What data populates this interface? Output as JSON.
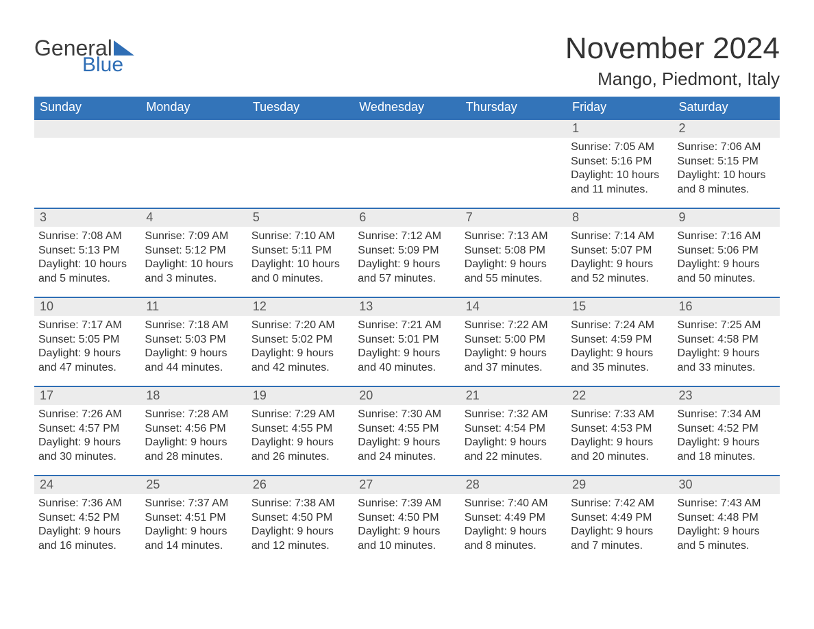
{
  "logo": {
    "word1": "General",
    "word2": "Blue",
    "triangle_color": "#2f6eb5",
    "text1_color": "#3c3c3c",
    "text2_color": "#2f6eb5"
  },
  "title": {
    "month": "November 2024",
    "location": "Mango, Piedmont, Italy"
  },
  "styling": {
    "header_bg": "#3374b9",
    "header_text_color": "#ffffff",
    "daynum_bar_bg": "#ececec",
    "daynum_bar_border_top": "#2f6eb5",
    "body_text_color": "#333333",
    "page_bg": "#ffffff",
    "header_font_size_pt": 14,
    "title_font_size_pt": 33,
    "location_font_size_pt": 20,
    "cell_font_size_pt": 12,
    "daynum_font_size_pt": 14
  },
  "day_headers": [
    "Sunday",
    "Monday",
    "Tuesday",
    "Wednesday",
    "Thursday",
    "Friday",
    "Saturday"
  ],
  "labels": {
    "sunrise": "Sunrise:",
    "sunset": "Sunset:",
    "daylight": "Daylight:"
  },
  "weeks": [
    [
      null,
      null,
      null,
      null,
      null,
      {
        "n": "1",
        "sunrise": "7:05 AM",
        "sunset": "5:16 PM",
        "dl1": "10 hours",
        "dl2": "and 11 minutes."
      },
      {
        "n": "2",
        "sunrise": "7:06 AM",
        "sunset": "5:15 PM",
        "dl1": "10 hours",
        "dl2": "and 8 minutes."
      }
    ],
    [
      {
        "n": "3",
        "sunrise": "7:08 AM",
        "sunset": "5:13 PM",
        "dl1": "10 hours",
        "dl2": "and 5 minutes."
      },
      {
        "n": "4",
        "sunrise": "7:09 AM",
        "sunset": "5:12 PM",
        "dl1": "10 hours",
        "dl2": "and 3 minutes."
      },
      {
        "n": "5",
        "sunrise": "7:10 AM",
        "sunset": "5:11 PM",
        "dl1": "10 hours",
        "dl2": "and 0 minutes."
      },
      {
        "n": "6",
        "sunrise": "7:12 AM",
        "sunset": "5:09 PM",
        "dl1": "9 hours",
        "dl2": "and 57 minutes."
      },
      {
        "n": "7",
        "sunrise": "7:13 AM",
        "sunset": "5:08 PM",
        "dl1": "9 hours",
        "dl2": "and 55 minutes."
      },
      {
        "n": "8",
        "sunrise": "7:14 AM",
        "sunset": "5:07 PM",
        "dl1": "9 hours",
        "dl2": "and 52 minutes."
      },
      {
        "n": "9",
        "sunrise": "7:16 AM",
        "sunset": "5:06 PM",
        "dl1": "9 hours",
        "dl2": "and 50 minutes."
      }
    ],
    [
      {
        "n": "10",
        "sunrise": "7:17 AM",
        "sunset": "5:05 PM",
        "dl1": "9 hours",
        "dl2": "and 47 minutes."
      },
      {
        "n": "11",
        "sunrise": "7:18 AM",
        "sunset": "5:03 PM",
        "dl1": "9 hours",
        "dl2": "and 44 minutes."
      },
      {
        "n": "12",
        "sunrise": "7:20 AM",
        "sunset": "5:02 PM",
        "dl1": "9 hours",
        "dl2": "and 42 minutes."
      },
      {
        "n": "13",
        "sunrise": "7:21 AM",
        "sunset": "5:01 PM",
        "dl1": "9 hours",
        "dl2": "and 40 minutes."
      },
      {
        "n": "14",
        "sunrise": "7:22 AM",
        "sunset": "5:00 PM",
        "dl1": "9 hours",
        "dl2": "and 37 minutes."
      },
      {
        "n": "15",
        "sunrise": "7:24 AM",
        "sunset": "4:59 PM",
        "dl1": "9 hours",
        "dl2": "and 35 minutes."
      },
      {
        "n": "16",
        "sunrise": "7:25 AM",
        "sunset": "4:58 PM",
        "dl1": "9 hours",
        "dl2": "and 33 minutes."
      }
    ],
    [
      {
        "n": "17",
        "sunrise": "7:26 AM",
        "sunset": "4:57 PM",
        "dl1": "9 hours",
        "dl2": "and 30 minutes."
      },
      {
        "n": "18",
        "sunrise": "7:28 AM",
        "sunset": "4:56 PM",
        "dl1": "9 hours",
        "dl2": "and 28 minutes."
      },
      {
        "n": "19",
        "sunrise": "7:29 AM",
        "sunset": "4:55 PM",
        "dl1": "9 hours",
        "dl2": "and 26 minutes."
      },
      {
        "n": "20",
        "sunrise": "7:30 AM",
        "sunset": "4:55 PM",
        "dl1": "9 hours",
        "dl2": "and 24 minutes."
      },
      {
        "n": "21",
        "sunrise": "7:32 AM",
        "sunset": "4:54 PM",
        "dl1": "9 hours",
        "dl2": "and 22 minutes."
      },
      {
        "n": "22",
        "sunrise": "7:33 AM",
        "sunset": "4:53 PM",
        "dl1": "9 hours",
        "dl2": "and 20 minutes."
      },
      {
        "n": "23",
        "sunrise": "7:34 AM",
        "sunset": "4:52 PM",
        "dl1": "9 hours",
        "dl2": "and 18 minutes."
      }
    ],
    [
      {
        "n": "24",
        "sunrise": "7:36 AM",
        "sunset": "4:52 PM",
        "dl1": "9 hours",
        "dl2": "and 16 minutes."
      },
      {
        "n": "25",
        "sunrise": "7:37 AM",
        "sunset": "4:51 PM",
        "dl1": "9 hours",
        "dl2": "and 14 minutes."
      },
      {
        "n": "26",
        "sunrise": "7:38 AM",
        "sunset": "4:50 PM",
        "dl1": "9 hours",
        "dl2": "and 12 minutes."
      },
      {
        "n": "27",
        "sunrise": "7:39 AM",
        "sunset": "4:50 PM",
        "dl1": "9 hours",
        "dl2": "and 10 minutes."
      },
      {
        "n": "28",
        "sunrise": "7:40 AM",
        "sunset": "4:49 PM",
        "dl1": "9 hours",
        "dl2": "and 8 minutes."
      },
      {
        "n": "29",
        "sunrise": "7:42 AM",
        "sunset": "4:49 PM",
        "dl1": "9 hours",
        "dl2": "and 7 minutes."
      },
      {
        "n": "30",
        "sunrise": "7:43 AM",
        "sunset": "4:48 PM",
        "dl1": "9 hours",
        "dl2": "and 5 minutes."
      }
    ]
  ]
}
